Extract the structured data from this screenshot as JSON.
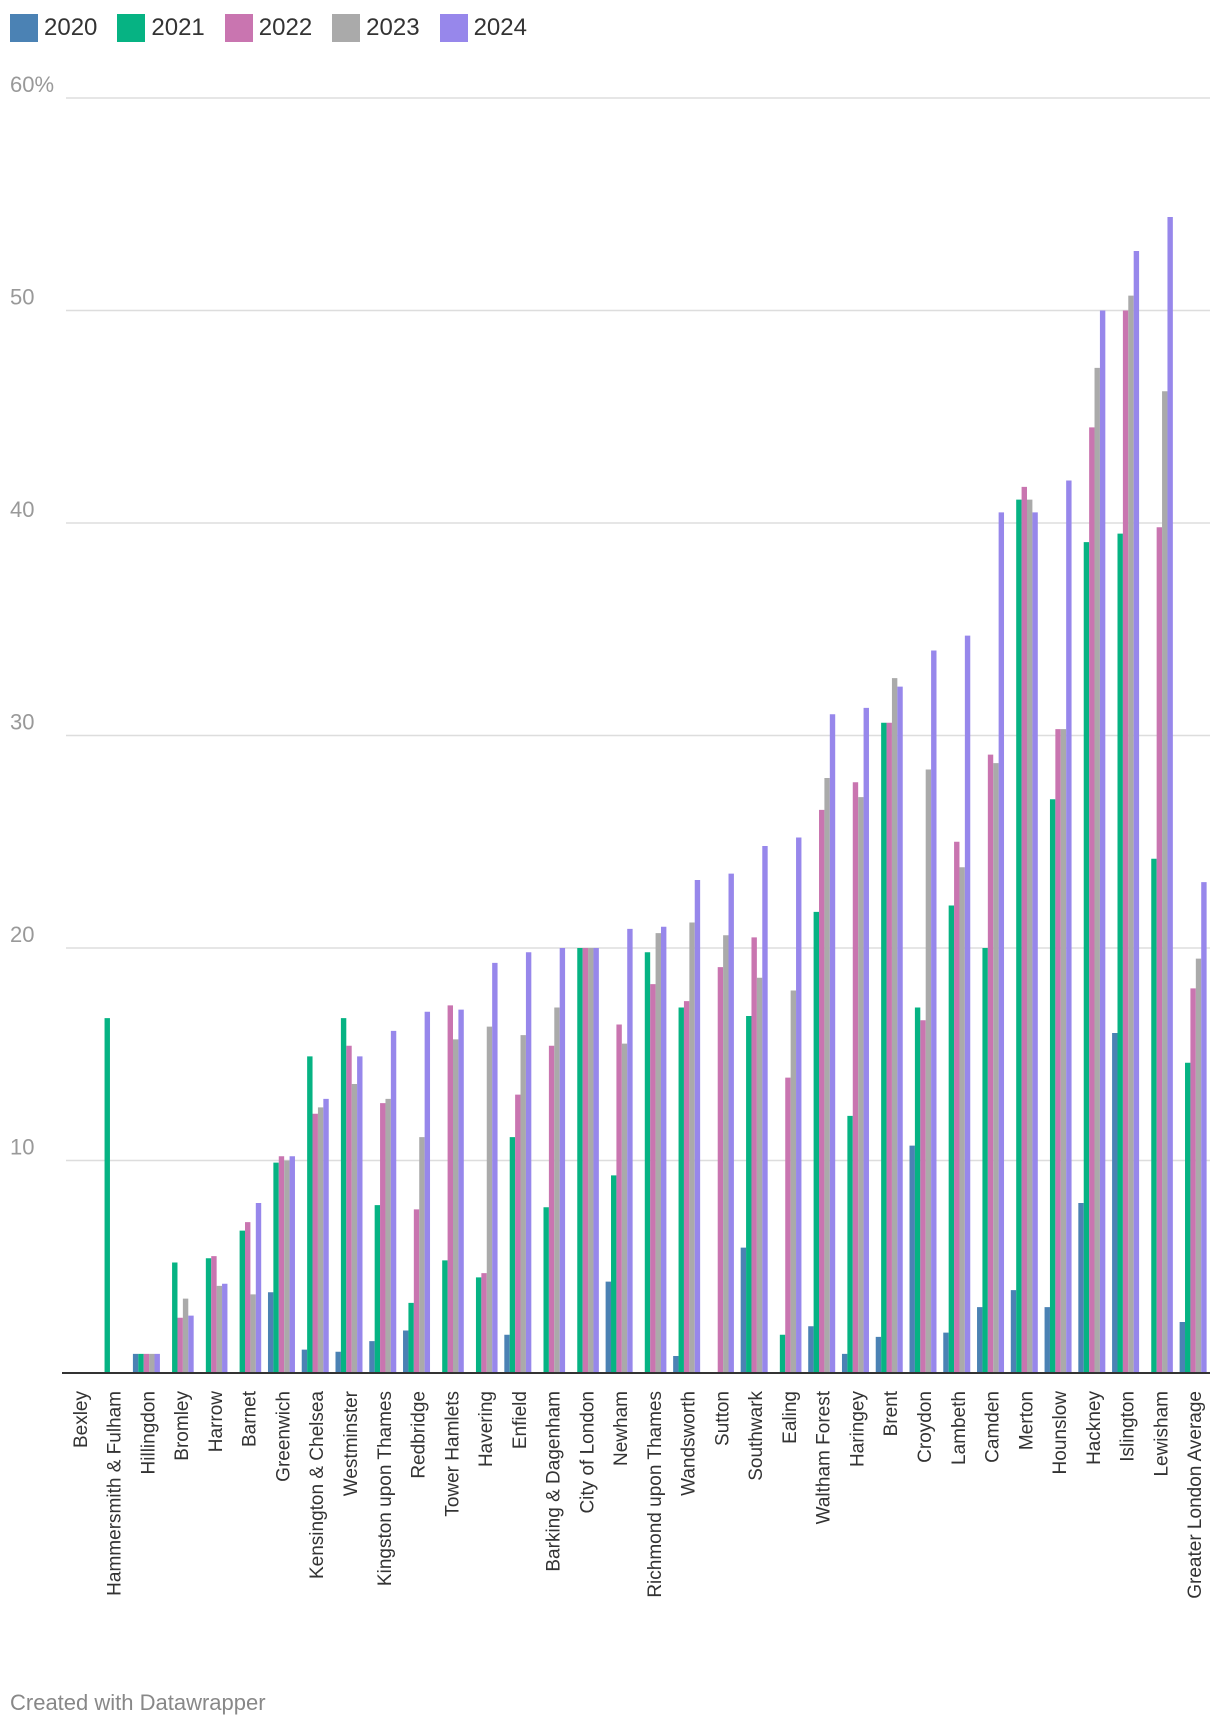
{
  "chart_data": {
    "type": "bar",
    "title": "",
    "xlabel": "",
    "ylabel": "",
    "ylim": [
      0,
      60
    ],
    "y_ticks": [
      "10",
      "20",
      "30",
      "40",
      "50",
      "60%"
    ],
    "y_tick_values": [
      10,
      20,
      30,
      40,
      50,
      60
    ],
    "grid": true,
    "legend_position": "top-left",
    "categories": [
      "Bexley",
      "Hammersmith & Fulham",
      "Hillingdon",
      "Bromley",
      "Harrow",
      "Barnet",
      "Greenwich",
      "Kensington & Chelsea",
      "Westminster",
      "Kingston upon Thames",
      "Redbridge",
      "Tower Hamlets",
      "Havering",
      "Enfield",
      "Barking & Dagenham",
      "City of London",
      "Newham",
      "Richmond upon Thames",
      "Wandsworth",
      "Sutton",
      "Southwark",
      "Ealing",
      "Waltham Forest",
      "Haringey",
      "Brent",
      "Croydon",
      "Lambeth",
      "Camden",
      "Merton",
      "Hounslow",
      "Hackney",
      "Islington",
      "Lewisham",
      "Greater London Average"
    ],
    "series": [
      {
        "name": "2020",
        "color": "#4b82b4",
        "values": [
          0,
          0,
          0.9,
          0,
          0,
          0,
          3.8,
          1.1,
          1.0,
          1.5,
          2.0,
          0,
          0,
          1.8,
          0,
          0,
          4.3,
          0,
          0.8,
          0,
          5.9,
          0,
          2.2,
          0.9,
          1.7,
          10.7,
          1.9,
          3.1,
          3.9,
          3.1,
          8.0,
          16.0,
          0,
          2.4
        ]
      },
      {
        "name": "2021",
        "color": "#06b383",
        "values": [
          0,
          16.7,
          0.9,
          5.2,
          5.4,
          6.7,
          9.9,
          14.9,
          16.7,
          7.9,
          3.3,
          5.3,
          4.5,
          11.1,
          7.8,
          20.0,
          9.3,
          19.8,
          17.2,
          0,
          16.8,
          1.8,
          21.7,
          12.1,
          30.6,
          17.2,
          22.0,
          20.0,
          41.1,
          27.0,
          39.1,
          39.5,
          24.2,
          14.6
        ]
      },
      {
        "name": "2022",
        "color": "#c975b0",
        "values": [
          0,
          0,
          0.9,
          2.6,
          5.5,
          7.1,
          10.2,
          12.2,
          15.4,
          12.7,
          7.7,
          17.3,
          4.7,
          13.1,
          15.4,
          20.0,
          16.4,
          18.3,
          17.5,
          19.1,
          20.5,
          13.9,
          26.5,
          27.8,
          30.6,
          16.6,
          25.0,
          29.1,
          41.7,
          30.3,
          44.5,
          50.0,
          39.8,
          18.1
        ]
      },
      {
        "name": "2023",
        "color": "#aaaaaa",
        "values": [
          0,
          0,
          0.9,
          3.5,
          4.1,
          3.7,
          10.0,
          12.5,
          13.6,
          12.9,
          11.1,
          15.7,
          16.3,
          15.9,
          17.2,
          20.0,
          15.5,
          20.7,
          21.2,
          20.6,
          18.6,
          18.0,
          28.0,
          27.1,
          32.7,
          28.4,
          23.8,
          28.7,
          41.1,
          30.3,
          47.3,
          50.7,
          46.2,
          19.5
        ]
      },
      {
        "name": "2024",
        "color": "#9787eb",
        "values": [
          0,
          0,
          0.9,
          2.7,
          4.2,
          8.0,
          10.2,
          12.9,
          14.9,
          16.1,
          17.0,
          17.1,
          19.3,
          19.8,
          20.0,
          20.0,
          20.9,
          21.0,
          23.2,
          23.5,
          24.8,
          25.2,
          31.0,
          31.3,
          32.3,
          34.0,
          34.7,
          40.5,
          40.5,
          42.0,
          50.0,
          52.8,
          54.4,
          23.1
        ]
      }
    ]
  },
  "footer": {
    "credit": "Created with Datawrapper"
  }
}
